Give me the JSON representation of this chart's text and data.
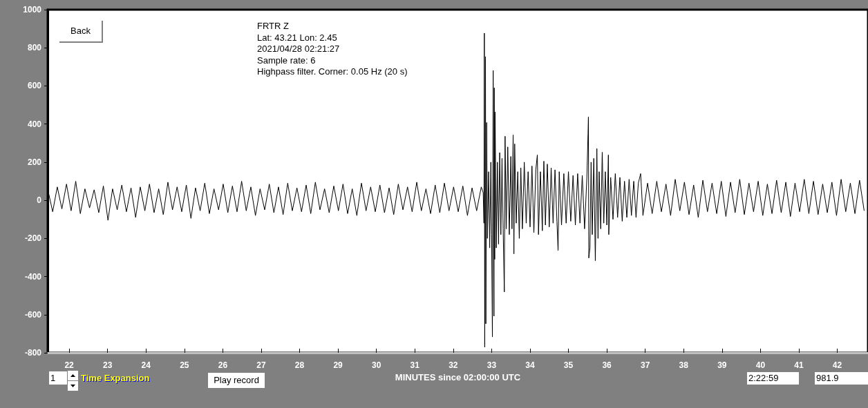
{
  "chart_data": {
    "type": "line",
    "xlabel": "MINUTES since 02:00:00 UTC",
    "annotations": [
      "FRTR  Z",
      "Lat: 43.21 Lon: 2.45",
      "2021/04/28 02:21:27",
      "Sample rate: 6",
      "Highpass filter. Corner: 0.05 Hz (20 s)",
      "Back",
      "1",
      "Time Expansion",
      "Play record",
      "2:22:59",
      "981.9"
    ],
    "series": [
      {
        "color": "#000000",
        "x": [
          21.45,
          21.57,
          21.69,
          21.81,
          21.93,
          22.05,
          22.17,
          22.29,
          22.41,
          22.53,
          22.65,
          22.77,
          22.89,
          23.01,
          23.13,
          23.25,
          23.37,
          23.49,
          23.61,
          23.73,
          23.85,
          23.97,
          24.09,
          24.21,
          24.33,
          24.45,
          24.57,
          24.69,
          24.81,
          24.93,
          25.05,
          25.17,
          25.29,
          25.41,
          25.53,
          25.65,
          25.77,
          25.89,
          26.01,
          26.13,
          26.25,
          26.37,
          26.49,
          26.61,
          26.73,
          26.85,
          26.97,
          27.09,
          27.21,
          27.33,
          27.45,
          27.57,
          27.69,
          27.81,
          27.93,
          28.05,
          28.17,
          28.29,
          28.41,
          28.53,
          28.65,
          28.77,
          28.89,
          29.01,
          29.13,
          29.25,
          29.37,
          29.49,
          29.61,
          29.73,
          29.85,
          29.97,
          30.09,
          30.21,
          30.33,
          30.45,
          30.57,
          30.69,
          30.81,
          30.93,
          31.05,
          31.17,
          31.29,
          31.41,
          31.53,
          31.65,
          31.77,
          31.89,
          32.01,
          32.13,
          32.25,
          32.37,
          32.49,
          32.61,
          32.73,
          32.78,
          32.8,
          32.81,
          32.82,
          32.84,
          32.85,
          32.87,
          32.89,
          32.92,
          32.95,
          32.98,
          33.0,
          33.02,
          33.04,
          33.06,
          33.07,
          33.08,
          33.09,
          33.12,
          33.15,
          33.18,
          33.21,
          33.24,
          33.27,
          33.3,
          33.33,
          33.35,
          33.38,
          33.42,
          33.46,
          33.5,
          33.53,
          33.56,
          33.58,
          33.6,
          33.64,
          33.68,
          33.72,
          33.76,
          33.8,
          33.85,
          33.9,
          33.95,
          34.0,
          34.05,
          34.1,
          34.15,
          34.19,
          34.22,
          34.27,
          34.32,
          34.36,
          34.4,
          34.45,
          34.5,
          34.55,
          34.6,
          34.65,
          34.7,
          34.73,
          34.76,
          34.82,
          34.88,
          34.94,
          35.0,
          35.06,
          35.12,
          35.18,
          35.24,
          35.3,
          35.36,
          35.42,
          35.48,
          35.51,
          35.52,
          35.53,
          35.56,
          35.59,
          35.62,
          35.66,
          35.7,
          35.74,
          35.77,
          35.8,
          35.84,
          35.88,
          35.92,
          35.96,
          36.0,
          36.04,
          36.05,
          36.1,
          36.16,
          36.22,
          36.28,
          36.34,
          36.4,
          36.46,
          36.52,
          36.58,
          36.64,
          36.7,
          36.76,
          36.82,
          36.88,
          36.94,
          37.06,
          37.18,
          37.3,
          37.42,
          37.54,
          37.66,
          37.78,
          37.9,
          38.02,
          38.14,
          38.26,
          38.38,
          38.5,
          38.62,
          38.74,
          38.86,
          38.98,
          39.1,
          39.22,
          39.34,
          39.46,
          39.58,
          39.7,
          39.82,
          39.94,
          40.06,
          40.18,
          40.3,
          40.42,
          40.54,
          40.66,
          40.78,
          40.9,
          41.02,
          41.14,
          41.26,
          41.38,
          41.5,
          41.62,
          41.74,
          41.86,
          41.98,
          42.1,
          42.22,
          42.34,
          42.46,
          42.58,
          42.7
        ],
        "values": [
          50,
          -60,
          70,
          -45,
          85,
          -55,
          100,
          -70,
          60,
          -40,
          55,
          -65,
          75,
          -105,
          60,
          -50,
          80,
          -60,
          65,
          -90,
          70,
          -55,
          85,
          -65,
          60,
          -75,
          95,
          -50,
          70,
          -60,
          80,
          -95,
          65,
          -55,
          90,
          -70,
          60,
          -50,
          85,
          -65,
          75,
          -60,
          100,
          -55,
          70,
          -80,
          60,
          -50,
          85,
          -65,
          70,
          -75,
          90,
          -55,
          65,
          -60,
          80,
          -70,
          95,
          -50,
          60,
          -65,
          75,
          -55,
          85,
          -70,
          60,
          -80,
          90,
          -55,
          70,
          -60,
          80,
          -65,
          65,
          -75,
          85,
          -50,
          70,
          -60,
          95,
          -55,
          60,
          -70,
          80,
          -65,
          90,
          -55,
          70,
          -60,
          75,
          -80,
          65,
          -55,
          70,
          40,
          -120,
          877,
          -771,
          753,
          -648,
          408,
          -200,
          150,
          -250,
          200,
          -180,
          -717,
          681,
          -608,
          590,
          -310,
          463,
          -250,
          200,
          -230,
          250,
          -180,
          220,
          -150,
          -481,
          336,
          -150,
          280,
          -180,
          230,
          -150,
          343,
          -281,
          296,
          -120,
          150,
          -200,
          170,
          -150,
          200,
          -120,
          150,
          -140,
          180,
          -170,
          160,
          238,
          -180,
          150,
          -160,
          205,
          -130,
          190,
          -140,
          170,
          -120,
          160,
          -110,
          -263,
          150,
          -130,
          140,
          -120,
          150,
          -110,
          130,
          -130,
          140,
          -120,
          130,
          -150,
          120,
          350,
          437,
          -303,
          -250,
          200,
          -180,
          220,
          -317,
          271,
          -200,
          150,
          -150,
          252,
          -120,
          150,
          -130,
          238,
          -180,
          120,
          -100,
          140,
          -90,
          120,
          -110,
          100,
          -90,
          110,
          -80,
          100,
          -90,
          90,
          140,
          -80,
          90,
          -70,
          100,
          -60,
          85,
          -80,
          110,
          -55,
          95,
          -75,
          80,
          -90,
          105,
          -60,
          90,
          -70,
          100,
          -85,
          95,
          -65,
          110,
          -75,
          90,
          -60,
          100,
          -80,
          85,
          -70,
          105,
          -65,
          95,
          -85,
          90,
          -60,
          110,
          -70,
          100,
          -75,
          85,
          -65,
          95,
          -80,
          110,
          -60,
          90,
          -70,
          105,
          -55
        ]
      }
    ],
    "xlim": [
      21.44,
      42.8
    ],
    "xticks": [
      22,
      23,
      24,
      25,
      26,
      27,
      28,
      29,
      30,
      31,
      32,
      33,
      34,
      35,
      36,
      37,
      38,
      39,
      40,
      41,
      42
    ],
    "ylim": [
      -800,
      1000
    ],
    "yticks": [
      -800,
      -600,
      -400,
      -200,
      0,
      200,
      400,
      600,
      800,
      1000
    ],
    "marker": "none",
    "line_style": "solid"
  }
}
